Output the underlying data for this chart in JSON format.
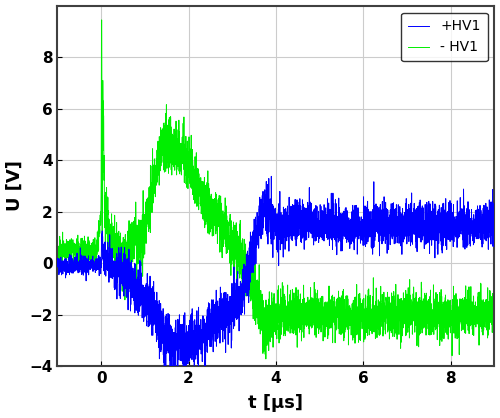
{
  "xlabel": "t [µs]",
  "ylabel": "U [V]",
  "xlim": [
    -1.0,
    9.0
  ],
  "ylim": [
    -4,
    10
  ],
  "yticks": [
    -4,
    -2,
    0,
    2,
    4,
    6,
    8
  ],
  "xticks": [
    0,
    2,
    4,
    6,
    8
  ],
  "blue_label": "+HV1",
  "green_label": "- HV1",
  "blue_color": "#0000FF",
  "green_color": "#00EE00",
  "background_color": "#FFFFFF",
  "grid_color": "#CCCCCC",
  "legend_fontsize": 10,
  "axis_fontsize": 13,
  "tick_fontsize": 11,
  "linewidth": 0.7,
  "seed": 42,
  "n_points": 4000
}
